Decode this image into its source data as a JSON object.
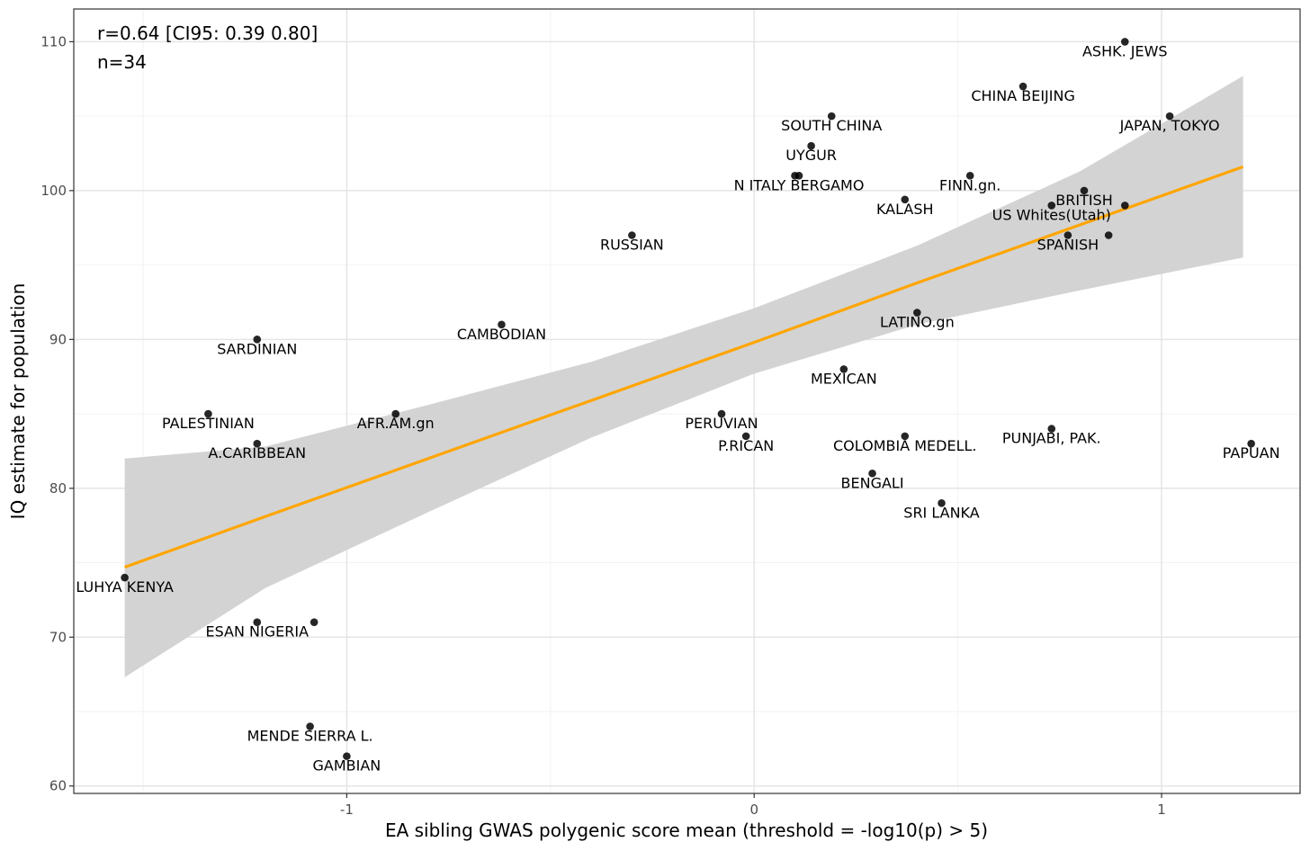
{
  "chart_data": {
    "type": "scatter",
    "xlabel": "EA sibling GWAS polygenic score mean (threshold = -log10(p) > 5)",
    "ylabel": "IQ estimate for population",
    "xlim": [
      -1.67,
      1.34
    ],
    "ylim": [
      59.5,
      112.2
    ],
    "x_ticks": [
      -1,
      0,
      1
    ],
    "x_tick_labels": [
      "-1",
      "0",
      "1"
    ],
    "y_ticks": [
      60,
      70,
      80,
      90,
      100,
      110
    ],
    "y_tick_labels": [
      "60",
      "70",
      "80",
      "90",
      "100",
      "110"
    ],
    "grid": true,
    "annotations": [
      "r=0.64 [CI95: 0.39 0.80]",
      "n=34"
    ],
    "colors": {
      "fit_line": "#FFA500",
      "confidence_band": "#d3d3d3",
      "points": "#000000"
    },
    "fit": {
      "x": [
        -1.545,
        -1.2,
        -0.8,
        -0.4,
        0.0,
        0.4,
        0.8,
        1.2
      ],
      "y": [
        74.7,
        78.1,
        82.0,
        85.9,
        89.8,
        93.8,
        97.7,
        101.6
      ],
      "ci_lower": [
        67.3,
        73.3,
        78.4,
        83.4,
        87.7,
        91.0,
        93.3,
        95.5
      ],
      "ci_upper": [
        82.0,
        82.8,
        85.6,
        88.5,
        92.1,
        96.3,
        101.3,
        107.7
      ]
    },
    "points": [
      {
        "label": "ASHK. JEWS",
        "x": 0.91,
        "y": 110
      },
      {
        "label": "CHINA BEIJING",
        "x": 0.66,
        "y": 107
      },
      {
        "label": "JAPAN, TOKYO",
        "x": 1.02,
        "y": 105
      },
      {
        "label": "SOUTH CHINA",
        "x": 0.19,
        "y": 105
      },
      {
        "label": "UYGUR",
        "x": 0.14,
        "y": 103
      },
      {
        "label": "N ITALY BERGAMO",
        "x": 0.11,
        "y": 101
      },
      {
        "label": "",
        "x": 0.1,
        "y": 101
      },
      {
        "label": "FINN.gn.",
        "x": 0.53,
        "y": 101
      },
      {
        "label": "BRITISH",
        "x": 0.81,
        "y": 100
      },
      {
        "label": "KALASH",
        "x": 0.37,
        "y": 99.4
      },
      {
        "label": "US Whites(Utah)",
        "x": 0.73,
        "y": 99
      },
      {
        "label": "",
        "x": 0.91,
        "y": 99
      },
      {
        "label": "SPANISH",
        "x": 0.77,
        "y": 97
      },
      {
        "label": "",
        "x": 0.87,
        "y": 97
      },
      {
        "label": "RUSSIAN",
        "x": -0.3,
        "y": 97
      },
      {
        "label": "LATINO.gn",
        "x": 0.4,
        "y": 91.8
      },
      {
        "label": "CAMBODIAN",
        "x": -0.62,
        "y": 91
      },
      {
        "label": "SARDINIAN",
        "x": -1.22,
        "y": 90
      },
      {
        "label": "MEXICAN",
        "x": 0.22,
        "y": 88
      },
      {
        "label": "PALESTINIAN",
        "x": -1.34,
        "y": 85
      },
      {
        "label": "AFR.AM.gn",
        "x": -0.88,
        "y": 85
      },
      {
        "label": "PERUVIAN",
        "x": -0.08,
        "y": 85
      },
      {
        "label": "PUNJABI, PAK.",
        "x": 0.73,
        "y": 84
      },
      {
        "label": "P.RICAN",
        "x": -0.02,
        "y": 83.5
      },
      {
        "label": "COLOMBIA MEDELL.",
        "x": 0.37,
        "y": 83.5
      },
      {
        "label": "A.CARIBBEAN",
        "x": -1.22,
        "y": 83
      },
      {
        "label": "PAPUAN",
        "x": 1.22,
        "y": 83
      },
      {
        "label": "BENGALI",
        "x": 0.29,
        "y": 81
      },
      {
        "label": "SRI LANKA",
        "x": 0.46,
        "y": 79
      },
      {
        "label": "LUHYA KENYA",
        "x": -1.545,
        "y": 74
      },
      {
        "label": "ESAN NIGERIA",
        "x": -1.22,
        "y": 71
      },
      {
        "label": "",
        "x": -1.08,
        "y": 71
      },
      {
        "label": "MENDE SIERRA L.",
        "x": -1.09,
        "y": 64
      },
      {
        "label": "GAMBIAN",
        "x": -1.0,
        "y": 62
      }
    ]
  }
}
